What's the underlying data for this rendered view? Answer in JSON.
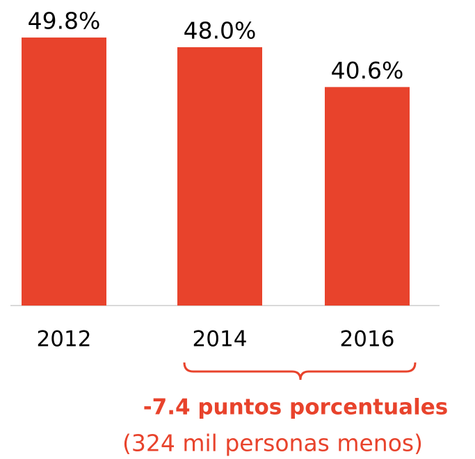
{
  "chart_data": {
    "type": "bar",
    "categories": [
      "2012",
      "2014",
      "2016"
    ],
    "values": [
      49.8,
      48.0,
      40.6
    ],
    "value_labels": [
      "49.8%",
      "48.0%",
      "40.6%"
    ],
    "color": "#e8432c",
    "annotations": [
      "-7.4 puntos porcentuales",
      "(324 mil personas menos)"
    ]
  }
}
